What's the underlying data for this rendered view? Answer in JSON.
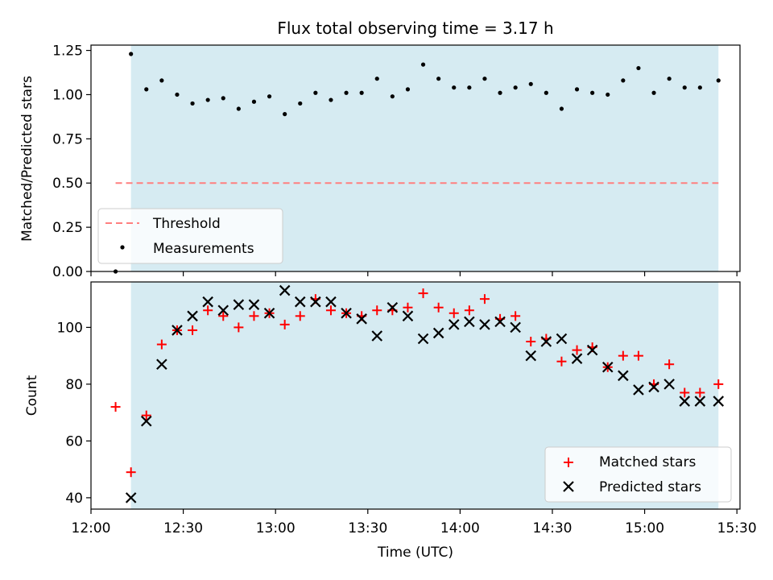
{
  "title": "Flux total observing time = 3.17 h",
  "colors": {
    "band": "#add8e6",
    "threshold": "#ff7f7f",
    "matched": "#ff0000",
    "predicted": "#000000",
    "measurements": "#000000"
  },
  "top_panel": {
    "ylabel": "Matched/Predicted stars",
    "yticks": [
      "0.00",
      "0.25",
      "0.50",
      "0.75",
      "1.00",
      "1.25"
    ],
    "legend": {
      "threshold": "Threshold",
      "measurements": "Measurements"
    }
  },
  "bottom_panel": {
    "ylabel": "Count",
    "yticks": [
      "40",
      "60",
      "80",
      "100"
    ],
    "legend": {
      "matched": "Matched stars",
      "predicted": "Predicted stars"
    }
  },
  "xaxis": {
    "label": "Time (UTC)",
    "ticks": [
      "12:00",
      "12:30",
      "13:00",
      "13:30",
      "14:00",
      "14:30",
      "15:00",
      "15:30"
    ]
  },
  "chart_data": [
    {
      "type": "scatter",
      "panel": "top",
      "title": "Flux total observing time = 3.17 h",
      "ylabel": "Matched/Predicted stars",
      "xlabel": "",
      "ylim": [
        0,
        1.28
      ],
      "xlim": [
        "12:00",
        "15:31"
      ],
      "band": [
        "12:13",
        "15:24"
      ],
      "threshold": {
        "name": "Threshold",
        "value": 0.5,
        "x": [
          "12:08",
          "15:24"
        ]
      },
      "series": [
        {
          "name": "Measurements",
          "x": [
            "12:08",
            "12:13",
            "12:18",
            "12:23",
            "12:28",
            "12:33",
            "12:38",
            "12:43",
            "12:48",
            "12:53",
            "12:58",
            "13:03",
            "13:08",
            "13:13",
            "13:18",
            "13:23",
            "13:28",
            "13:33",
            "13:38",
            "13:43",
            "13:48",
            "13:53",
            "13:58",
            "14:03",
            "14:08",
            "14:13",
            "14:18",
            "14:23",
            "14:28",
            "14:33",
            "14:38",
            "14:43",
            "14:48",
            "14:53",
            "14:58",
            "15:03",
            "15:08",
            "15:13",
            "15:18",
            "15:24"
          ],
          "values": [
            0.0,
            1.23,
            1.03,
            1.08,
            1.0,
            0.95,
            0.97,
            0.98,
            0.92,
            0.96,
            0.99,
            0.89,
            0.95,
            1.01,
            0.97,
            1.01,
            1.01,
            1.09,
            0.99,
            1.03,
            1.17,
            1.09,
            1.04,
            1.04,
            1.09,
            1.01,
            1.04,
            1.06,
            1.01,
            0.92,
            1.03,
            1.01,
            1.0,
            1.08,
            1.15,
            1.01,
            1.09,
            1.04,
            1.04,
            1.08
          ]
        }
      ]
    },
    {
      "type": "scatter",
      "panel": "bottom",
      "xlabel": "Time (UTC)",
      "ylabel": "Count",
      "ylim": [
        36,
        116
      ],
      "xlim": [
        "12:00",
        "15:31"
      ],
      "band": [
        "12:13",
        "15:24"
      ],
      "series": [
        {
          "name": "Matched stars",
          "marker": "+",
          "x": [
            "12:08",
            "12:13",
            "12:18",
            "12:23",
            "12:28",
            "12:33",
            "12:38",
            "12:43",
            "12:48",
            "12:53",
            "12:58",
            "13:03",
            "13:08",
            "13:13",
            "13:18",
            "13:23",
            "13:28",
            "13:33",
            "13:38",
            "13:43",
            "13:48",
            "13:53",
            "13:58",
            "14:03",
            "14:08",
            "14:13",
            "14:18",
            "14:23",
            "14:28",
            "14:33",
            "14:38",
            "14:43",
            "14:48",
            "14:53",
            "14:58",
            "15:03",
            "15:08",
            "15:13",
            "15:18",
            "15:24"
          ],
          "values": [
            72,
            49,
            69,
            94,
            99,
            99,
            106,
            104,
            100,
            104,
            105,
            101,
            104,
            110,
            106,
            105,
            104,
            106,
            106,
            107,
            112,
            107,
            105,
            106,
            110,
            103,
            104,
            95,
            96,
            88,
            92,
            93,
            86,
            90,
            90,
            80,
            87,
            77,
            77,
            80
          ]
        },
        {
          "name": "Predicted stars",
          "marker": "x",
          "x": [
            "12:13",
            "12:18",
            "12:23",
            "12:28",
            "12:33",
            "12:38",
            "12:43",
            "12:48",
            "12:53",
            "12:58",
            "13:03",
            "13:08",
            "13:13",
            "13:18",
            "13:23",
            "13:28",
            "13:33",
            "13:38",
            "13:43",
            "13:48",
            "13:53",
            "13:58",
            "14:03",
            "14:08",
            "14:13",
            "14:18",
            "14:23",
            "14:28",
            "14:33",
            "14:38",
            "14:43",
            "14:48",
            "14:53",
            "14:58",
            "15:03",
            "15:08",
            "15:13",
            "15:18",
            "15:24"
          ],
          "values": [
            40,
            67,
            87,
            99,
            104,
            109,
            106,
            108,
            108,
            105,
            113,
            109,
            109,
            109,
            105,
            103,
            97,
            107,
            104,
            96,
            98,
            101,
            102,
            101,
            102,
            100,
            90,
            95,
            96,
            89,
            92,
            86,
            83,
            78,
            79,
            80,
            74,
            74,
            74
          ]
        }
      ]
    }
  ]
}
